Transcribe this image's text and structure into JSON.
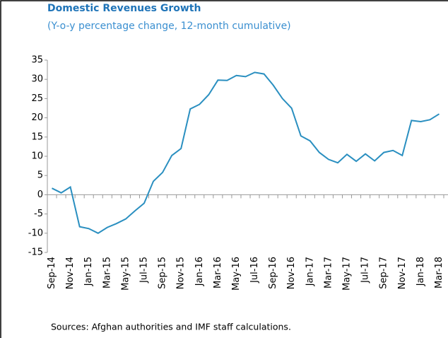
{
  "chart_data": {
    "type": "line",
    "title": "Domestic Revenues Growth",
    "subtitle": "(Y-o-y percentage change, 12-month cumulative)",
    "source": "Sources: Afghan authorities and IMF staff calculations.",
    "categories": [
      "Sep-14",
      null,
      "Nov-14",
      null,
      "Jan-15",
      null,
      "Mar-15",
      null,
      "May-15",
      null,
      "Jul-15",
      null,
      "Sep-15",
      null,
      "Nov-15",
      null,
      "Jan-16",
      null,
      "Mar-16",
      null,
      "May-16",
      null,
      "Jul-16",
      null,
      "Sep-16",
      null,
      "Nov-16",
      null,
      "Jan-17",
      null,
      "Mar-17",
      null,
      "May-17",
      null,
      "Jul-17",
      null,
      "Sep-17",
      null,
      "Nov-17",
      null,
      "Jan-18",
      null,
      "Mar-18"
    ],
    "series": [
      {
        "name": "Domestic revenues",
        "color": "#2a8fc0",
        "values": [
          1.7,
          0.5,
          2.0,
          -8.3,
          -8.8,
          -10,
          -8.5,
          -7.5,
          -6.3,
          -4.2,
          -2.2,
          3.5,
          5.8,
          10.2,
          12,
          22.3,
          23.5,
          26,
          29.8,
          29.7,
          31,
          30.7,
          31.8,
          31.4,
          28.5,
          25,
          22.5,
          15.3,
          14,
          11,
          9.2,
          8.3,
          10.5,
          8.7,
          10.6,
          8.8,
          11,
          11.5,
          10.2,
          19.3,
          19,
          19.5,
          21
        ]
      }
    ],
    "ylim": [
      -15,
      35
    ],
    "yticks": [
      -15,
      -10,
      -5,
      0,
      5,
      10,
      15,
      20,
      25,
      30,
      35
    ],
    "grid": false
  }
}
